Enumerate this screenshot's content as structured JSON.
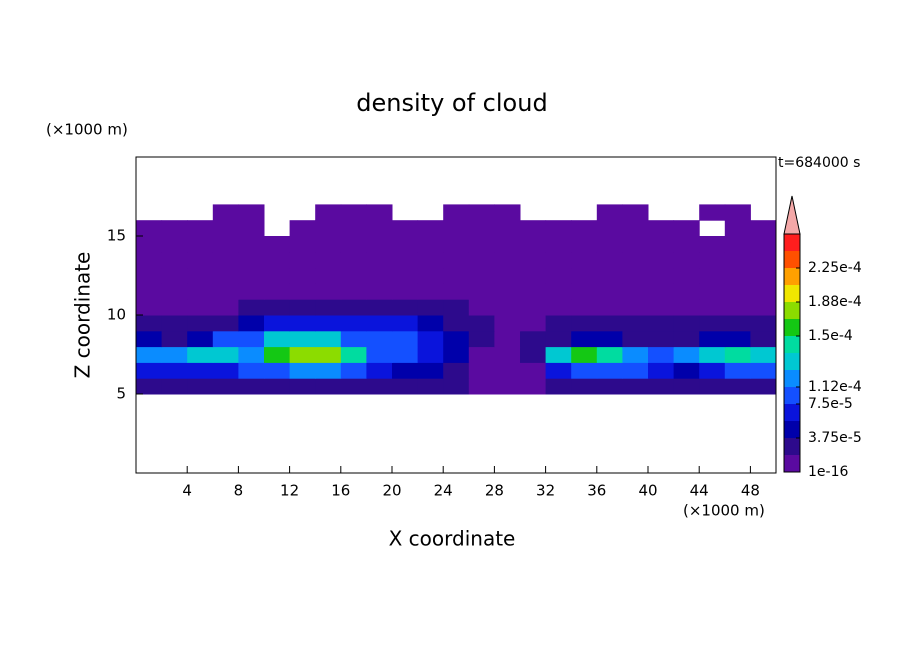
{
  "chart_data": {
    "type": "contour",
    "title": "density of cloud",
    "xlabel": "X coordinate",
    "ylabel": "Z coordinate",
    "xunit": "(×1000 m)",
    "yunit": "(×1000 m)",
    "annotation": "t=684000 s",
    "xlim": [
      0,
      50
    ],
    "ylim": [
      0,
      20
    ],
    "xticks": [
      4,
      8,
      12,
      16,
      20,
      24,
      28,
      32,
      36,
      40,
      44,
      48
    ],
    "yticks": [
      5,
      10,
      15
    ],
    "x": [
      1,
      3,
      5,
      7,
      9,
      11,
      13,
      15,
      17,
      19,
      21,
      23,
      25,
      27,
      29,
      31,
      33,
      35,
      37,
      39,
      41,
      43,
      45,
      47,
      49
    ],
    "y": [
      5.5,
      6.5,
      7.5,
      8.5,
      9.5,
      10.5,
      11.5,
      12.5,
      13.5,
      14.5,
      15.5,
      16.5
    ],
    "z": [
      [
        2e-05,
        2e-05,
        2e-05,
        2e-05,
        2e-05,
        2e-05,
        2e-05,
        2e-05,
        2e-05,
        2e-05,
        2e-05,
        2e-05,
        2e-05,
        5e-06,
        5e-06,
        5e-06,
        2e-05,
        2e-05,
        2e-05,
        2e-05,
        2e-05,
        2e-05,
        2e-05,
        2e-05,
        2e-05
      ],
      [
        6e-05,
        6e-05,
        7e-05,
        6e-05,
        8e-05,
        9e-05,
        0.0001,
        0.0001,
        9e-05,
        6e-05,
        5e-05,
        4e-05,
        3e-05,
        1e-05,
        5e-06,
        1e-05,
        6e-05,
        8e-05,
        9e-05,
        8e-05,
        6e-05,
        5e-05,
        6e-05,
        8e-05,
        9e-05
      ],
      [
        0.00011,
        0.0001,
        0.00012,
        0.00013,
        0.00011,
        0.00015,
        0.00017,
        0.00018,
        0.00014,
        9e-05,
        8e-05,
        6e-05,
        4e-05,
        1e-05,
        5e-06,
        2e-05,
        0.00013,
        0.00015,
        0.00014,
        0.00011,
        9e-05,
        0.0001,
        0.00013,
        0.00014,
        0.00012
      ],
      [
        4e-05,
        3e-05,
        4e-05,
        8e-05,
        9e-05,
        0.00012,
        0.00013,
        0.00012,
        8e-05,
        8e-05,
        9e-05,
        7e-05,
        4e-05,
        2e-05,
        1e-05,
        2e-05,
        3e-05,
        4e-05,
        4e-05,
        3e-05,
        3e-05,
        3e-05,
        4e-05,
        4e-05,
        3e-05
      ],
      [
        2e-05,
        2e-05,
        3e-05,
        3e-05,
        5e-05,
        6e-05,
        6e-05,
        7e-05,
        6e-05,
        6e-05,
        7e-05,
        5e-05,
        3e-05,
        2e-05,
        1e-05,
        1e-05,
        2e-05,
        2e-05,
        2e-05,
        2e-05,
        2e-05,
        2e-05,
        2e-05,
        2e-05,
        2e-05
      ],
      [
        1e-05,
        1e-05,
        1e-05,
        1e-05,
        2e-05,
        2e-05,
        2e-05,
        2e-05,
        2e-05,
        2e-05,
        2e-05,
        2e-05,
        2e-05,
        1e-05,
        1e-05,
        1e-05,
        1e-05,
        1e-05,
        1e-05,
        1e-05,
        1e-05,
        1e-05,
        1e-05,
        1e-05,
        1e-05
      ],
      [
        8e-06,
        8e-06,
        8e-06,
        8e-06,
        8e-06,
        8e-06,
        8e-06,
        8e-06,
        8e-06,
        8e-06,
        8e-06,
        8e-06,
        8e-06,
        8e-06,
        8e-06,
        8e-06,
        8e-06,
        8e-06,
        8e-06,
        8e-06,
        8e-06,
        8e-06,
        8e-06,
        8e-06,
        8e-06
      ],
      [
        3e-06,
        3e-06,
        3e-06,
        3e-06,
        3e-06,
        3e-06,
        3e-06,
        3e-06,
        3e-06,
        3e-06,
        3e-06,
        3e-06,
        3e-06,
        3e-06,
        3e-06,
        3e-06,
        3e-06,
        3e-06,
        3e-06,
        3e-06,
        3e-06,
        3e-06,
        3e-06,
        3e-06,
        3e-06
      ],
      [
        1e-06,
        1e-06,
        1e-06,
        1e-06,
        1e-06,
        1e-06,
        1e-06,
        1e-06,
        1e-06,
        1e-06,
        1e-06,
        1e-06,
        1e-06,
        1e-06,
        1e-06,
        1e-06,
        1e-06,
        1e-06,
        1e-06,
        1e-06,
        1e-06,
        1e-06,
        1e-06,
        1e-06,
        1e-06
      ],
      [
        1e-06,
        1e-06,
        1e-06,
        1e-06,
        1e-06,
        1e-06,
        1e-06,
        1e-06,
        1e-06,
        1e-06,
        1e-06,
        1e-06,
        1e-06,
        1e-06,
        1e-06,
        1e-06,
        1e-06,
        1e-06,
        1e-06,
        1e-06,
        1e-06,
        1e-06,
        1e-06,
        1e-06,
        1e-06
      ],
      [
        1e-06,
        1e-06,
        1e-06,
        1e-06,
        1e-06,
        0,
        1e-06,
        1e-06,
        1e-06,
        1e-06,
        1e-06,
        1e-06,
        1e-06,
        1e-06,
        1e-06,
        1e-06,
        1e-06,
        1e-06,
        1e-06,
        1e-06,
        1e-06,
        1e-06,
        0,
        1e-06,
        1e-06
      ],
      [
        0,
        0,
        0,
        1e-06,
        1e-06,
        0,
        0,
        1e-06,
        1e-06,
        1e-06,
        0,
        0,
        1e-06,
        1e-06,
        1e-06,
        0,
        0,
        0,
        1e-06,
        1e-06,
        0,
        0,
        1e-06,
        1e-06,
        0
      ]
    ],
    "levels": [
      1e-16,
      1.875e-05,
      3.75e-05,
      5.625e-05,
      7.5e-05,
      9.375e-05,
      0.0001125,
      0.00013125,
      0.00015,
      0.00016875,
      0.0001875,
      0.00020625,
      0.000225,
      0.00024375
    ],
    "colors": [
      "#5a0aa0",
      "#2d0a8c",
      "#0000aa",
      "#0a14dc",
      "#1450ff",
      "#0a8cff",
      "#00c8d2",
      "#00dca0",
      "#14c814",
      "#8cdc00",
      "#f0e600",
      "#ffa000",
      "#ff5000",
      "#ff1e1e"
    ],
    "extend_color": "#f4a8a8",
    "cbticks": [
      {
        "value": 1e-16,
        "label": "1e-16"
      },
      {
        "value": 3.75e-05,
        "label": "3.75e-5"
      },
      {
        "value": 7.5e-05,
        "label": "7.5e-5"
      },
      {
        "value": 0.000112,
        "label": "1.12e-4"
      },
      {
        "value": 0.00015,
        "label": "1.5e-4"
      },
      {
        "value": 0.000188,
        "label": "1.88e-4"
      },
      {
        "value": 0.000225,
        "label": "2.25e-4"
      }
    ]
  }
}
